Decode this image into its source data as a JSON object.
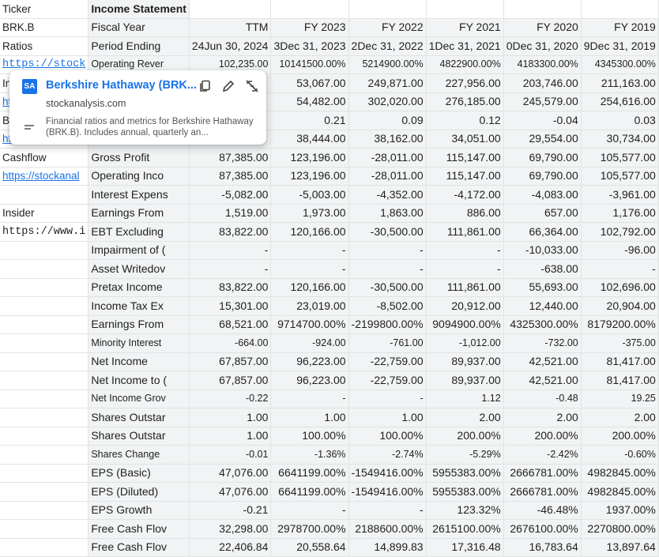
{
  "colA": [
    "Ticker",
    "BRK.B",
    "Ratios",
    "https://stock",
    "In",
    "ht",
    "Ba",
    "ht",
    "Cashflow",
    "https://stockanal",
    "",
    "Insider",
    "https://www.i",
    "",
    "",
    "",
    "",
    "",
    "",
    "",
    "",
    "",
    "",
    "",
    "",
    "",
    "",
    "",
    "",
    "",
    ""
  ],
  "colA_style": [
    "",
    "",
    "",
    "mono link",
    "",
    "link",
    "",
    "link",
    "",
    "link",
    "",
    "",
    "mono",
    "",
    "",
    "",
    "",
    "",
    "",
    "",
    "",
    "",
    "",
    "",
    "",
    "",
    "",
    "",
    "",
    "",
    ""
  ],
  "header": {
    "colB": "Income Statement",
    "cols": [
      "TTM",
      "FY 2023",
      "FY 2022",
      "FY 2021",
      "FY 2020",
      "FY 2019"
    ]
  },
  "rows": [
    {
      "label": "Fiscal Year",
      "vals": [
        "TTM",
        "FY 2023",
        "FY 2022",
        "FY 2021",
        "FY 2020",
        "FY 2019"
      ]
    },
    {
      "label": "Period Ending",
      "vals": [
        "24Jun 30, 2024",
        "3Dec 31, 2023",
        "2Dec 31, 2022",
        "1Dec 31, 2021",
        "0Dec 31, 2020",
        "9Dec 31, 2019"
      ]
    },
    {
      "label": "Operating Rever",
      "vals": [
        "102,235.00",
        "10141500.00%",
        "5214900.00%",
        "4822900.00%",
        "4183300.00%",
        "4345300.00%"
      ],
      "small": true
    },
    {
      "label": "",
      "vals": [
        "",
        "53,067.00",
        "249,871.00",
        "227,956.00",
        "203,746.00",
        "211,163.00"
      ]
    },
    {
      "label": "",
      "vals": [
        "",
        "54,482.00",
        "302,020.00",
        "276,185.00",
        "245,579.00",
        "254,616.00"
      ]
    },
    {
      "label": "",
      "vals": [
        "",
        "0.21",
        "0.09",
        "0.12",
        "-0.04",
        "0.03"
      ]
    },
    {
      "label": "",
      "vals": [
        "",
        "38,444.00",
        "38,162.00",
        "34,051.00",
        "29,554.00",
        "30,734.00"
      ]
    },
    {
      "label": "Gross Profit",
      "vals": [
        "87,385.00",
        "123,196.00",
        "-28,011.00",
        "115,147.00",
        "69,790.00",
        "105,577.00"
      ]
    },
    {
      "label": "Operating Inco",
      "vals": [
        "87,385.00",
        "123,196.00",
        "-28,011.00",
        "115,147.00",
        "69,790.00",
        "105,577.00"
      ]
    },
    {
      "label": "Interest Expens",
      "vals": [
        "-5,082.00",
        "-5,003.00",
        "-4,352.00",
        "-4,172.00",
        "-4,083.00",
        "-3,961.00"
      ]
    },
    {
      "label": "Earnings From",
      "vals": [
        "1,519.00",
        "1,973.00",
        "1,863.00",
        "886.00",
        "657.00",
        "1,176.00"
      ]
    },
    {
      "label": "EBT Excluding",
      "vals": [
        "83,822.00",
        "120,166.00",
        "-30,500.00",
        "111,861.00",
        "66,364.00",
        "102,792.00"
      ]
    },
    {
      "label": "Impairment of (",
      "vals": [
        "-",
        "-",
        "-",
        "-",
        "-10,033.00",
        "-96.00"
      ]
    },
    {
      "label": "Asset Writedov",
      "vals": [
        "-",
        "-",
        "-",
        "-",
        "-638.00",
        "-"
      ]
    },
    {
      "label": "Pretax Income",
      "vals": [
        "83,822.00",
        "120,166.00",
        "-30,500.00",
        "111,861.00",
        "55,693.00",
        "102,696.00"
      ]
    },
    {
      "label": "Income Tax Ex",
      "vals": [
        "15,301.00",
        "23,019.00",
        "-8,502.00",
        "20,912.00",
        "12,440.00",
        "20,904.00"
      ]
    },
    {
      "label": "Earnings From",
      "vals": [
        "68,521.00",
        "9714700.00%",
        "-2199800.00%",
        "9094900.00%",
        "4325300.00%",
        "8179200.00%"
      ]
    },
    {
      "label": "Minority Interest",
      "vals": [
        "-664.00",
        "-924.00",
        "-761.00",
        "-1,012.00",
        "-732.00",
        "-375.00"
      ],
      "small": true
    },
    {
      "label": "Net Income",
      "vals": [
        "67,857.00",
        "96,223.00",
        "-22,759.00",
        "89,937.00",
        "42,521.00",
        "81,417.00"
      ]
    },
    {
      "label": "Net Income to (",
      "vals": [
        "67,857.00",
        "96,223.00",
        "-22,759.00",
        "89,937.00",
        "42,521.00",
        "81,417.00"
      ]
    },
    {
      "label": "Net Income Grov",
      "vals": [
        "-0.22",
        "-",
        "-",
        "1.12",
        "-0.48",
        "19.25"
      ],
      "small": true
    },
    {
      "label": "Shares Outstar",
      "vals": [
        "1.00",
        "1.00",
        "1.00",
        "2.00",
        "2.00",
        "2.00"
      ]
    },
    {
      "label": "Shares Outstar",
      "vals": [
        "1.00",
        "100.00%",
        "100.00%",
        "200.00%",
        "200.00%",
        "200.00%"
      ]
    },
    {
      "label": "Shares Change",
      "vals": [
        "-0.01",
        "-1.36%",
        "-2.74%",
        "-5.29%",
        "-2.42%",
        "-0.60%"
      ],
      "small": true
    },
    {
      "label": "EPS (Basic)",
      "vals": [
        "47,076.00",
        "6641199.00%",
        "-1549416.00%",
        "5955383.00%",
        "2666781.00%",
        "4982845.00%"
      ]
    },
    {
      "label": "EPS (Diluted)",
      "vals": [
        "47,076.00",
        "6641199.00%",
        "-1549416.00%",
        "5955383.00%",
        "2666781.00%",
        "4982845.00%"
      ]
    },
    {
      "label": "EPS Growth",
      "vals": [
        "-0.21",
        "-",
        "-",
        "123.32%",
        "-46.48%",
        "1937.00%"
      ]
    },
    {
      "label": "Free Cash Flov",
      "vals": [
        "32,298.00",
        "2978700.00%",
        "2188600.00%",
        "2615100.00%",
        "2676100.00%",
        "2270800.00%"
      ]
    },
    {
      "label": "Free Cash Flov",
      "vals": [
        "22,406.84",
        "20,558.64",
        "14,899.83",
        "17,316.48",
        "16,783.64",
        "13,897.64"
      ]
    }
  ],
  "popup": {
    "logo": "SA",
    "title": "Berkshire Hathaway (BRK...",
    "site": "stockanalysis.com",
    "description": "Financial ratios and metrics for Berkshire Hathaway (BRK.B). Includes annual, quarterly an...",
    "icons": [
      "copy-icon",
      "edit-icon",
      "unlink-icon"
    ]
  }
}
